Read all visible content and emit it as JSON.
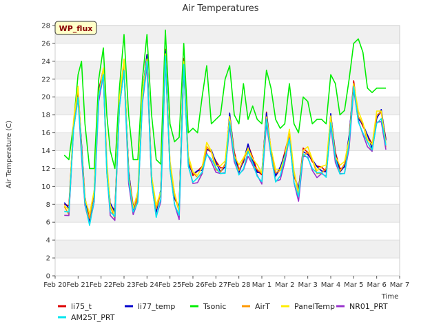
{
  "chart_data": {
    "type": "line",
    "title": "Air Temperatures",
    "xlabel": "Time",
    "ylabel": "Air Temperature (C)",
    "badge": "WP_flux",
    "ylim": [
      0,
      28
    ],
    "yticks": [
      0,
      2,
      4,
      6,
      8,
      10,
      12,
      14,
      16,
      18,
      20,
      22,
      24,
      26,
      28
    ],
    "xlim": [
      0,
      15
    ],
    "xticks": [
      0,
      1,
      2,
      3,
      4,
      5,
      6,
      7,
      8,
      9,
      10,
      11,
      12,
      13,
      14,
      15
    ],
    "xtick_labels": [
      "Feb 20",
      "Feb 21",
      "Feb 22",
      "Feb 23",
      "Feb 24",
      "Feb 25",
      "Feb 26",
      "Feb 27",
      "Feb 28",
      "Mar 1",
      "Mar 2",
      "Mar 3",
      "Mar 4",
      "Mar 5",
      "Mar 6",
      "Mar 7"
    ],
    "grid": "horizontal bands",
    "legend_position": "bottom",
    "series": [
      {
        "name": "li75_t",
        "color": "#dd0000",
        "offset": 0.5
      },
      {
        "name": "li77_temp",
        "color": "#0000cc",
        "offset": 0.4
      },
      {
        "name": "Tsonic",
        "color": "#00ee00",
        "offset": 0
      },
      {
        "name": "AirT",
        "color": "#ff9900",
        "offset": 0.2
      },
      {
        "name": "PanelTemp",
        "color": "#ffee00",
        "offset": 0.6
      },
      {
        "name": "NR01_PRT",
        "color": "#9933cc",
        "offset": -0.4
      },
      {
        "name": "AM25T_PRT",
        "color": "#00e5ee",
        "offset": -0.2
      }
    ],
    "base_x": [
      0.4,
      0.6,
      0.8,
      1.0,
      1.15,
      1.3,
      1.5,
      1.7,
      1.9,
      2.1,
      2.25,
      2.4,
      2.6,
      2.8,
      3.0,
      3.2,
      3.4,
      3.6,
      3.8,
      4.0,
      4.2,
      4.4,
      4.6,
      4.8,
      5.0,
      5.2,
      5.4,
      5.6,
      5.8,
      6.0,
      6.2,
      6.4,
      6.6,
      6.8,
      7.0,
      7.2,
      7.4,
      7.6,
      7.8,
      8.0,
      8.2,
      8.4,
      8.6,
      8.8,
      9.0,
      9.2,
      9.4,
      9.6,
      9.8,
      10.0,
      10.2,
      10.4,
      10.6,
      10.8,
      11.0,
      11.2,
      11.4,
      11.6,
      11.8,
      12.0,
      12.2,
      12.4,
      12.6,
      12.8,
      13.0,
      13.2,
      13.4,
      13.6,
      13.8,
      14.0,
      14.2,
      14.4
    ],
    "base_y": [
      7.5,
      7.0,
      16.5,
      20.5,
      14.0,
      8.0,
      6.0,
      9.0,
      20.0,
      22.5,
      12.0,
      7.5,
      6.5,
      19.0,
      23.5,
      11.0,
      7.0,
      8.5,
      20.0,
      24.0,
      10.5,
      7.0,
      9.0,
      24.5,
      12.0,
      8.5,
      7.0,
      23.5,
      12.5,
      11.0,
      11.0,
      11.5,
      14.0,
      13.5,
      12.0,
      11.5,
      12.0,
      17.5,
      13.0,
      11.5,
      12.5,
      14.0,
      12.5,
      11.5,
      11.0,
      17.5,
      13.5,
      11.0,
      11.5,
      13.0,
      15.5,
      11.0,
      9.0,
      13.5,
      13.5,
      12.5,
      11.5,
      11.5,
      11.5,
      17.5,
      13.0,
      11.5,
      12.0,
      15.0,
      21.0,
      17.5,
      16.5,
      15.0,
      14.0,
      17.5,
      18.0,
      14.5
    ],
    "tsonic_y": [
      13.5,
      13.0,
      17.0,
      22.5,
      24.0,
      17.0,
      12.0,
      12.0,
      22.0,
      25.5,
      18.0,
      14.0,
      12.0,
      21.0,
      27.0,
      18.0,
      13.0,
      13.0,
      22.0,
      27.0,
      18.0,
      13.0,
      12.5,
      27.5,
      17.0,
      15.0,
      15.5,
      26.0,
      16.0,
      16.5,
      16.0,
      20.0,
      23.5,
      17.0,
      17.5,
      18.0,
      22.0,
      23.5,
      18.0,
      17.0,
      21.5,
      17.5,
      19.0,
      17.5,
      17.0,
      23.0,
      21.0,
      17.5,
      16.5,
      17.0,
      21.5,
      17.0,
      16.0,
      20.0,
      19.5,
      17.0,
      17.5,
      17.5,
      17.0,
      22.5,
      21.5,
      18.0,
      18.5,
      22.0,
      26.0,
      26.5,
      25.0,
      21.0,
      20.5,
      21.0,
      21.0,
      21.0
    ]
  },
  "legend": {
    "items": [
      "li75_t",
      "li77_temp",
      "Tsonic",
      "AirT",
      "PanelTemp",
      "NR01_PRT",
      "AM25T_PRT"
    ]
  }
}
